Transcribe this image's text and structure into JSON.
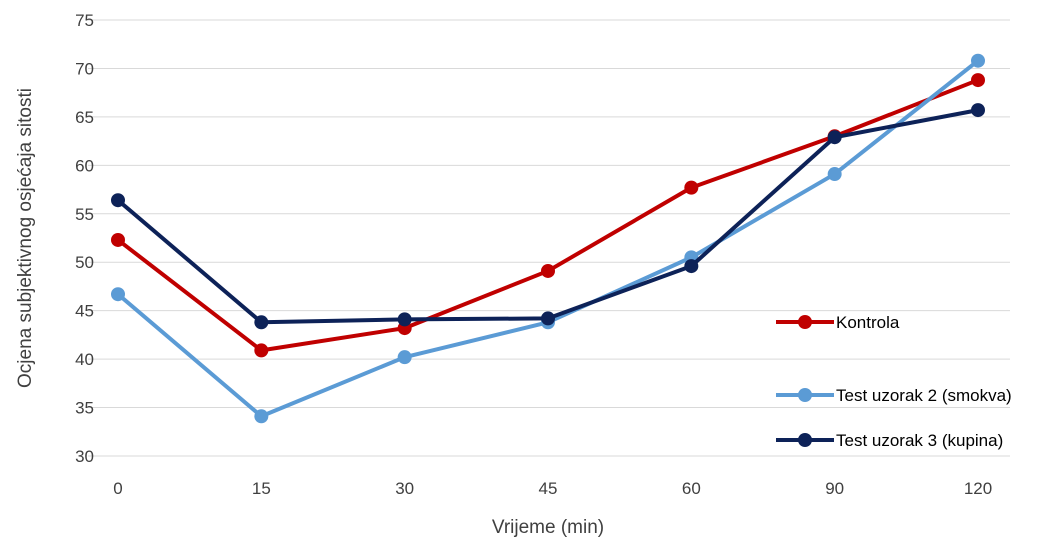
{
  "chart_data": {
    "type": "line",
    "title": "",
    "xlabel": "Vrijeme (min)",
    "ylabel": "Ocjena subjektivnog osjećaja sitosti",
    "categories": [
      "0",
      "15",
      "30",
      "45",
      "60",
      "90",
      "120"
    ],
    "ylim": [
      30,
      75
    ],
    "yticks": [
      "30",
      "35",
      "40",
      "45",
      "50",
      "55",
      "60",
      "65",
      "70",
      "75"
    ],
    "grid": true,
    "legend_position": "right",
    "series": [
      {
        "name": "Kontrola",
        "color": "#c00000",
        "values": [
          52.3,
          40.9,
          43.2,
          49.1,
          57.7,
          63.0,
          68.8
        ]
      },
      {
        "name": "Test uzorak 2 (smokva)",
        "color": "#5b9bd5",
        "values": [
          46.7,
          34.1,
          40.2,
          43.8,
          50.5,
          59.1,
          70.8
        ]
      },
      {
        "name": "Test uzorak 3 (kupina)",
        "color": "#0d2258",
        "values": [
          56.4,
          43.8,
          44.1,
          44.2,
          49.6,
          62.9,
          65.7
        ]
      }
    ]
  }
}
